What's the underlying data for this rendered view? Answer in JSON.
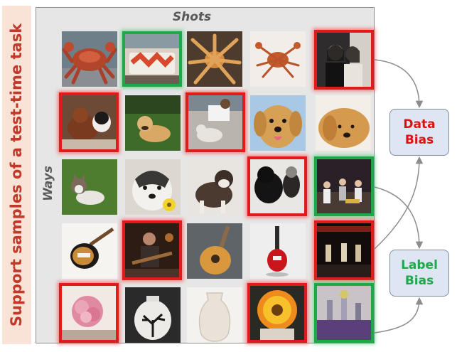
{
  "side_label": "Support samples of a test-time task",
  "shots_label": "Shots",
  "ways_label": "Ways",
  "data_bias": {
    "line1": "Data",
    "line2": "Bias"
  },
  "label_bias": {
    "line1": "Label",
    "line2": "Bias"
  },
  "colors": {
    "data_bias_border": "#e01b1b",
    "label_bias_border": "#1fa84a",
    "panel": "#e6e6e6",
    "side_bg": "#f8e3d6"
  },
  "grid": [
    [
      {
        "subject": "crab-photo",
        "mark": "none"
      },
      {
        "subject": "crab-food-photo",
        "mark": "green"
      },
      {
        "subject": "king-crab-photo",
        "mark": "none"
      },
      {
        "subject": "dried-crab-photo",
        "mark": "none"
      },
      {
        "subject": "people-photo",
        "mark": "red"
      }
    ],
    [
      {
        "subject": "spaniel-dogs-photo",
        "mark": "red"
      },
      {
        "subject": "retriever-grass-photo",
        "mark": "none"
      },
      {
        "subject": "person-with-dog-photo",
        "mark": "red"
      },
      {
        "subject": "retriever-face-photo",
        "mark": "none"
      },
      {
        "subject": "retriever-lying-photo",
        "mark": "none"
      }
    ],
    [
      {
        "subject": "husky-puppy-photo",
        "mark": "none"
      },
      {
        "subject": "husky-flower-photo",
        "mark": "none"
      },
      {
        "subject": "malamute-photo",
        "mark": "none"
      },
      {
        "subject": "black-dogs-photo",
        "mark": "red"
      },
      {
        "subject": "party-people-photo",
        "mark": "green"
      }
    ],
    [
      {
        "subject": "electric-guitar-photo",
        "mark": "none"
      },
      {
        "subject": "guitarist-photo",
        "mark": "red"
      },
      {
        "subject": "acoustic-guitar-photo",
        "mark": "none"
      },
      {
        "subject": "red-guitar-photo",
        "mark": "none"
      },
      {
        "subject": "concert-stage-photo",
        "mark": "red"
      }
    ],
    [
      {
        "subject": "pink-flower-photo",
        "mark": "red"
      },
      {
        "subject": "tree-vase-photo",
        "mark": "none"
      },
      {
        "subject": "white-vase-photo",
        "mark": "none"
      },
      {
        "subject": "gerbera-photo",
        "mark": "red"
      },
      {
        "subject": "trophy-table-photo",
        "mark": "green"
      }
    ]
  ]
}
